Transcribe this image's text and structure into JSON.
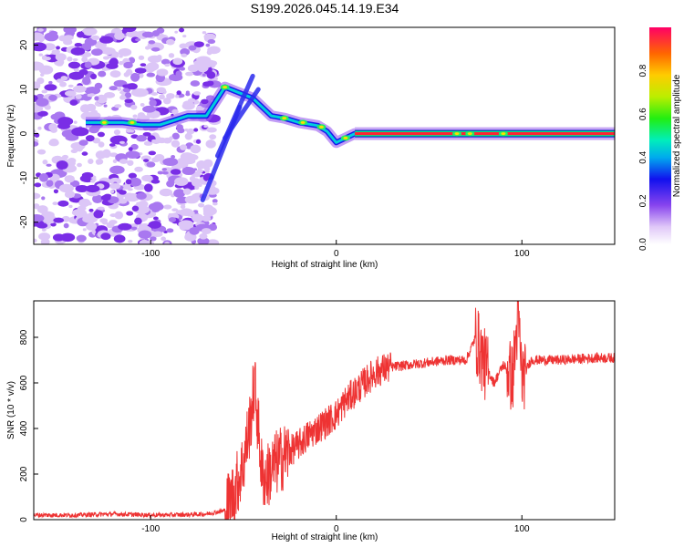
{
  "figure": {
    "title": "S199.2026.045.14.19.E34"
  },
  "chart_data": [
    {
      "type": "heatmap",
      "name": "spectrogram",
      "xlabel": "Height of straight line (km)",
      "ylabel": "Frequency (Hz)",
      "xlim": [
        -163,
        150
      ],
      "ylim": [
        -25,
        24
      ],
      "xticks": [
        -100,
        0,
        100
      ],
      "yticks": [
        -20,
        -10,
        0,
        10,
        20
      ],
      "ridge": {
        "description_points_km_hz": [
          [
            -135,
            2.5
          ],
          [
            -125,
            2.5
          ],
          [
            -115,
            2.5
          ],
          [
            -105,
            2.0
          ],
          [
            -95,
            2.0
          ],
          [
            -80,
            4.0
          ],
          [
            -70,
            4.0
          ],
          [
            -60,
            10.5
          ],
          [
            -45,
            8.0
          ],
          [
            -35,
            4.0
          ],
          [
            -28,
            3.5
          ],
          [
            -20,
            2.5
          ],
          [
            -10,
            1.8
          ],
          [
            -5,
            0.5
          ],
          [
            0,
            -2.0
          ],
          [
            5,
            -1.0
          ],
          [
            10,
            0
          ],
          [
            150,
            0
          ]
        ],
        "strong_band_km": [
          10,
          150
        ],
        "strong_band_hz": 0
      },
      "colorbar": {
        "label": "Normalized spectral amplitude",
        "range": [
          0,
          1
        ],
        "ticks": [
          "0.0",
          "0.2",
          "0.4",
          "0.6",
          "0.8"
        ],
        "tick_values": [
          0.0,
          0.2,
          0.4,
          0.6,
          0.8
        ]
      }
    },
    {
      "type": "line",
      "name": "snr",
      "xlabel": "Height of straight line (km)",
      "ylabel": "SNR (10 * v/v)",
      "xlim": [
        -163,
        150
      ],
      "ylim": [
        0,
        960
      ],
      "xticks": [
        -100,
        0,
        100
      ],
      "yticks": [
        0,
        200,
        400,
        600,
        800
      ],
      "series": [
        {
          "name": "SNR",
          "color": "#ee3333",
          "x": [
            -163,
            -140,
            -120,
            -100,
            -80,
            -70,
            -60,
            -55,
            -50,
            -46,
            -44,
            -42,
            -40,
            -38,
            -35,
            -32,
            -28,
            -25,
            -20,
            -15,
            -10,
            -5,
            0,
            5,
            10,
            15,
            20,
            25,
            30,
            40,
            50,
            60,
            70,
            75,
            80,
            85,
            90,
            95,
            98,
            100,
            105,
            110,
            120,
            130,
            140,
            150
          ],
          "y": [
            20,
            20,
            25,
            20,
            22,
            25,
            40,
            120,
            250,
            450,
            600,
            400,
            200,
            180,
            220,
            250,
            280,
            300,
            330,
            370,
            400,
            430,
            460,
            520,
            560,
            600,
            640,
            660,
            670,
            680,
            690,
            700,
            700,
            800,
            680,
            600,
            680,
            620,
            900,
            620,
            700,
            700,
            700,
            705,
            710,
            710
          ]
        }
      ]
    }
  ]
}
